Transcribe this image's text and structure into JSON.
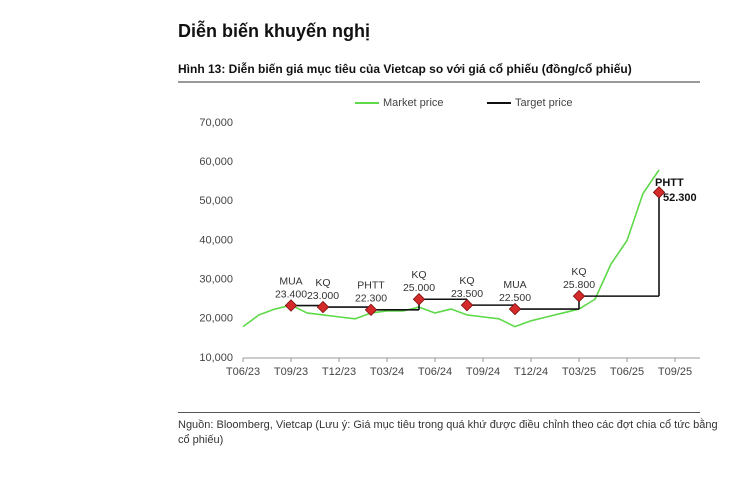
{
  "chart_data": {
    "type": "line",
    "heading": "Diễn biến khuyến nghị",
    "title": "Hình 13: Diễn biến giá mục tiêu của Vietcap so với giá cổ phiếu (đồng/cổ phiếu)",
    "note": "Nguồn: Bloomberg, Vietcap (Lưu ý: Giá mục tiêu trong quá khứ được điều chỉnh theo các đợt chia cổ tức bằng cổ phiếu)",
    "xlim": [
      "2023-06",
      "2025-09"
    ],
    "xticks": [
      {
        "value": "2023-06",
        "label": "T06/23"
      },
      {
        "value": "2023-09",
        "label": "T09/23"
      },
      {
        "value": "2023-12",
        "label": "T12/23"
      },
      {
        "value": "2024-03",
        "label": "T03/24"
      },
      {
        "value": "2024-06",
        "label": "T06/24"
      },
      {
        "value": "2024-09",
        "label": "T09/24"
      },
      {
        "value": "2024-12",
        "label": "T12/24"
      },
      {
        "value": "2025-03",
        "label": "T03/25"
      },
      {
        "value": "2025-06",
        "label": "T06/25"
      },
      {
        "value": "2025-09",
        "label": "T09/25"
      }
    ],
    "ylim": [
      10000,
      70000
    ],
    "yticks": [
      {
        "value": 10000,
        "label": "10,000"
      },
      {
        "value": 20000,
        "label": "20,000"
      },
      {
        "value": 30000,
        "label": "30,000"
      },
      {
        "value": 40000,
        "label": "40,000"
      },
      {
        "value": 50000,
        "label": "50,000"
      },
      {
        "value": 60000,
        "label": "60,000"
      },
      {
        "value": 70000,
        "label": "70,000"
      }
    ],
    "series": [
      {
        "name": "Market price",
        "color": "#5fd94a",
        "x": [
          "2023-06",
          "2023-07",
          "2023-08",
          "2023-09",
          "2023-10",
          "2023-11",
          "2023-12",
          "2024-01",
          "2024-02",
          "2024-03",
          "2024-04",
          "2024-05",
          "2024-06",
          "2024-07",
          "2024-08",
          "2024-09",
          "2024-10",
          "2024-11",
          "2024-12",
          "2025-01",
          "2025-02",
          "2025-03",
          "2025-04",
          "2025-05",
          "2025-06",
          "2025-07",
          "2025-08"
        ],
        "values": [
          18000,
          21000,
          22500,
          23500,
          21500,
          21000,
          20500,
          20000,
          21500,
          22000,
          22000,
          23000,
          21500,
          22500,
          21000,
          20500,
          20000,
          18000,
          19500,
          20500,
          21500,
          22500,
          25000,
          34000,
          40000,
          52000,
          58000
        ]
      },
      {
        "name": "Target price",
        "color": "#111111",
        "marker_color": "#d42a2a",
        "x": [
          "2023-09",
          "2023-11",
          "2024-02",
          "2024-05",
          "2024-08",
          "2024-11",
          "2025-03",
          "2025-08"
        ],
        "values": [
          23400,
          23000,
          22300,
          25000,
          23500,
          22500,
          25800,
          52300
        ],
        "value_labels": [
          "23.400",
          "23.000",
          "22.300",
          "25.000",
          "23.500",
          "22.500",
          "25.800",
          "52.300"
        ],
        "ratings": [
          "MUA",
          "KQ",
          "PHTT",
          "KQ",
          "KQ",
          "MUA",
          "KQ",
          "PHTT"
        ]
      }
    ]
  }
}
